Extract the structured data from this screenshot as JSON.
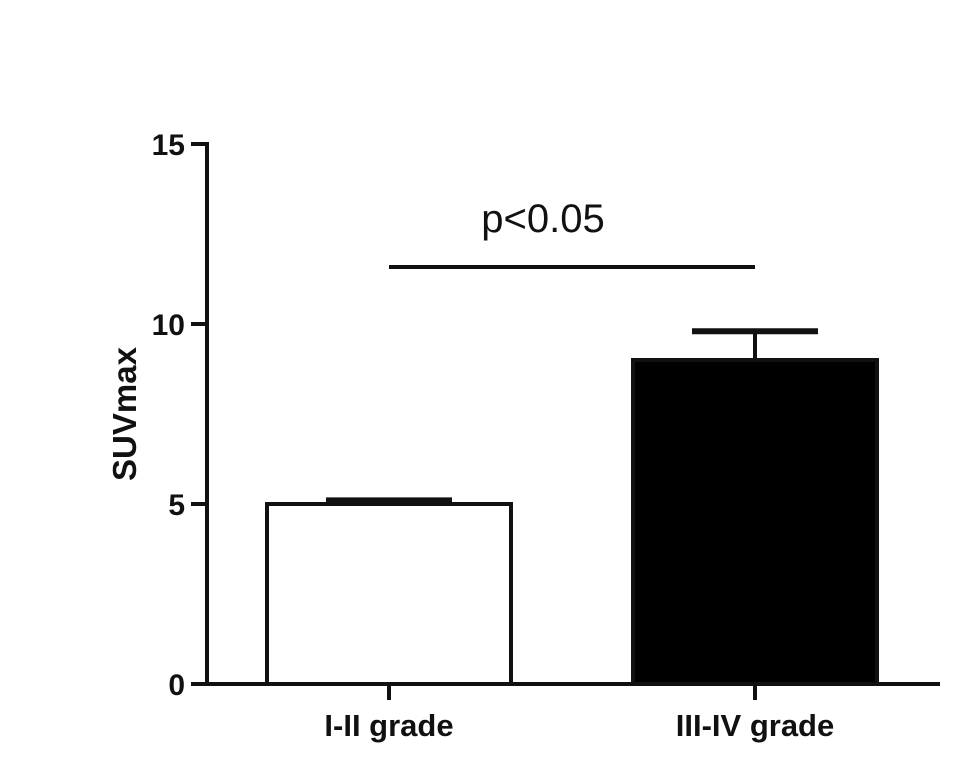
{
  "chart_data": {
    "type": "bar",
    "categories": [
      "I-II grade",
      "III-IV grade"
    ],
    "values": [
      5.0,
      9.0
    ],
    "error_upper": [
      5.1,
      9.8
    ],
    "bar_colors": [
      "#ffffff",
      "#000000"
    ],
    "ylabel": "SUVmax",
    "xlabel": "",
    "ylim": [
      0,
      15
    ],
    "yticks": [
      0,
      5,
      10,
      15
    ],
    "grid": false,
    "annotation": {
      "text": "p<0.05",
      "from_category": "I-II grade",
      "to_category": "III-IV grade"
    }
  }
}
